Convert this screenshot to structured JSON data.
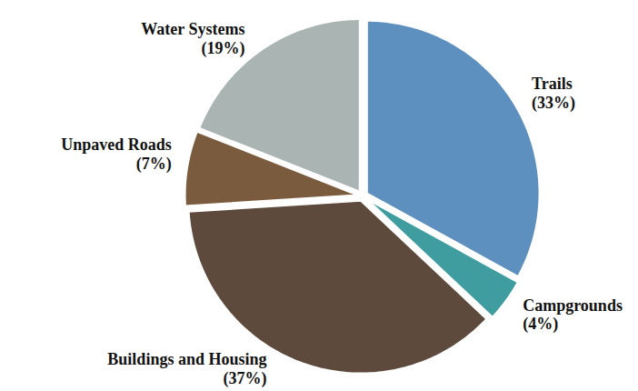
{
  "chart_data": {
    "type": "pie",
    "categories": [
      "Trails",
      "Campgrounds",
      "Buildings and Housing",
      "Unpaved Roads",
      "Water Systems"
    ],
    "values": [
      33,
      4,
      37,
      7,
      19
    ],
    "value_labels": [
      "(33%)",
      "(4%)",
      "(37%)",
      "(7%)",
      "(19%)"
    ],
    "colors": [
      "#5d8fbf",
      "#3f9da0",
      "#5e4a3c",
      "#7b5b3e",
      "#a9b4b3"
    ],
    "data_labels": true
  }
}
